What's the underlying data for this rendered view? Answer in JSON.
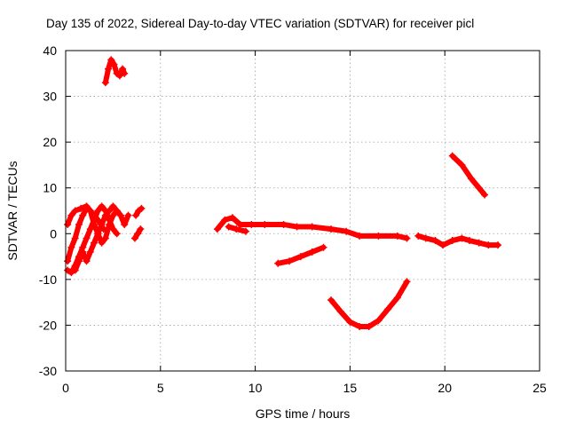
{
  "chart_data": {
    "type": "scatter",
    "title": "Day 135 of 2022, Sidereal Day-to-day VTEC variation (SDTVAR) for receiver picl",
    "xlabel": "GPS time / hours",
    "ylabel": "SDTVAR / TECUs",
    "xlim": [
      0,
      25
    ],
    "ylim": [
      -30,
      40
    ],
    "xticks": [
      0,
      5,
      10,
      15,
      20,
      25
    ],
    "yticks": [
      -30,
      -20,
      -10,
      0,
      10,
      20,
      30,
      40
    ],
    "grid": true,
    "marker_color": "#ff0000",
    "series": [
      {
        "name": "track-early-upper",
        "points": [
          [
            2.1,
            33
          ],
          [
            2.25,
            36
          ],
          [
            2.4,
            38
          ],
          [
            2.55,
            37
          ],
          [
            2.7,
            35
          ],
          [
            2.85,
            34.5
          ],
          [
            3.0,
            36
          ],
          [
            3.1,
            35
          ]
        ]
      },
      {
        "name": "track-early-main-a",
        "points": [
          [
            0.1,
            2
          ],
          [
            0.3,
            4
          ],
          [
            0.5,
            5
          ],
          [
            0.8,
            5.5
          ],
          [
            1.1,
            6
          ],
          [
            1.4,
            4.5
          ],
          [
            1.7,
            3
          ],
          [
            2.0,
            1
          ]
        ]
      },
      {
        "name": "track-early-main-b",
        "points": [
          [
            0.1,
            -6
          ],
          [
            0.3,
            -3
          ],
          [
            0.5,
            -1
          ],
          [
            0.7,
            2
          ],
          [
            0.9,
            4
          ],
          [
            1.1,
            5.5
          ],
          [
            1.3,
            5
          ],
          [
            1.5,
            2
          ],
          [
            1.7,
            0
          ],
          [
            1.9,
            -2
          ],
          [
            2.1,
            -1
          ],
          [
            2.3,
            2
          ],
          [
            2.5,
            4
          ],
          [
            2.7,
            5
          ],
          [
            2.9,
            4
          ],
          [
            3.1,
            2
          ],
          [
            3.3,
            4
          ]
        ]
      },
      {
        "name": "track-early-main-c",
        "points": [
          [
            0.1,
            -8
          ],
          [
            0.3,
            -8.5
          ],
          [
            0.5,
            -7
          ],
          [
            0.7,
            -5
          ],
          [
            0.9,
            -3
          ],
          [
            1.1,
            -1
          ],
          [
            1.3,
            1
          ],
          [
            1.5,
            3
          ],
          [
            1.7,
            5
          ],
          [
            1.9,
            6
          ],
          [
            2.1,
            5
          ],
          [
            2.3,
            3
          ],
          [
            2.5,
            1
          ],
          [
            2.7,
            0
          ]
        ]
      },
      {
        "name": "track-early-main-d",
        "points": [
          [
            0.5,
            -8
          ],
          [
            0.7,
            -6
          ],
          [
            0.9,
            -4
          ],
          [
            1.1,
            -6
          ],
          [
            1.3,
            -4
          ],
          [
            1.5,
            -2
          ],
          [
            1.7,
            0
          ],
          [
            1.9,
            2
          ],
          [
            2.1,
            4
          ],
          [
            2.3,
            5
          ],
          [
            2.5,
            6
          ],
          [
            2.7,
            5
          ]
        ]
      },
      {
        "name": "track-early-right-a",
        "points": [
          [
            3.7,
            4
          ],
          [
            3.85,
            5
          ],
          [
            4.0,
            5.5
          ]
        ]
      },
      {
        "name": "track-early-right-b",
        "points": [
          [
            3.65,
            -1
          ],
          [
            3.8,
            0
          ],
          [
            3.95,
            1
          ]
        ]
      },
      {
        "name": "track-long-main",
        "points": [
          [
            8.0,
            1
          ],
          [
            8.4,
            3
          ],
          [
            8.8,
            3.5
          ],
          [
            9.2,
            2
          ],
          [
            9.8,
            2
          ],
          [
            10.5,
            2
          ],
          [
            11.5,
            2
          ],
          [
            12.2,
            1.5
          ],
          [
            13.0,
            1.5
          ],
          [
            14.0,
            1
          ],
          [
            14.8,
            0.5
          ],
          [
            15.5,
            -0.5
          ],
          [
            16.5,
            -0.5
          ],
          [
            17.5,
            -0.5
          ],
          [
            18.0,
            -1
          ]
        ]
      },
      {
        "name": "track-long-sub",
        "points": [
          [
            8.6,
            1.5
          ],
          [
            9.0,
            1
          ],
          [
            9.5,
            0.5
          ]
        ]
      },
      {
        "name": "track-mid-lower",
        "points": [
          [
            11.2,
            -6.5
          ],
          [
            11.8,
            -6
          ],
          [
            12.4,
            -5
          ],
          [
            13.0,
            -4
          ],
          [
            13.6,
            -3
          ]
        ]
      },
      {
        "name": "track-arc",
        "points": [
          [
            14.0,
            -14.5
          ],
          [
            14.5,
            -17
          ],
          [
            15.0,
            -19.3
          ],
          [
            15.5,
            -20.3
          ],
          [
            16.0,
            -20.3
          ],
          [
            16.5,
            -19
          ],
          [
            17.0,
            -16.5
          ],
          [
            17.5,
            -14
          ],
          [
            18.0,
            -10.5
          ]
        ]
      },
      {
        "name": "track-late-main",
        "points": [
          [
            18.6,
            -0.5
          ],
          [
            19.0,
            -1
          ],
          [
            19.5,
            -1.5
          ],
          [
            19.9,
            -2.5
          ],
          [
            20.4,
            -1.5
          ],
          [
            20.9,
            -1
          ],
          [
            21.3,
            -1.5
          ],
          [
            21.8,
            -2
          ],
          [
            22.3,
            -2.5
          ],
          [
            22.8,
            -2.5
          ]
        ]
      },
      {
        "name": "track-late-upper",
        "points": [
          [
            20.4,
            17
          ],
          [
            20.9,
            15
          ],
          [
            21.4,
            12
          ],
          [
            21.8,
            10
          ],
          [
            22.1,
            8.5
          ]
        ]
      }
    ]
  }
}
